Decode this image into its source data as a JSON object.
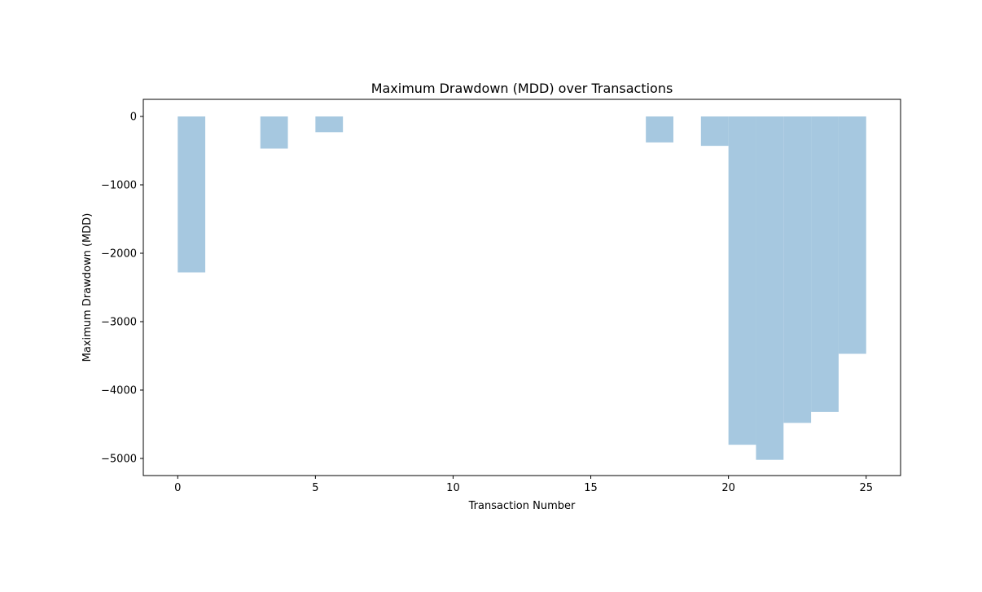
{
  "chart_data": {
    "type": "bar",
    "title": "Maximum Drawdown (MDD) over Transactions",
    "xlabel": "Transaction Number",
    "ylabel": "Maximum Drawdown (MDD)",
    "xlim": [
      -1.25,
      26.25
    ],
    "ylim": [
      -5250,
      250
    ],
    "xticks": [
      0,
      5,
      10,
      15,
      20,
      25
    ],
    "yticks": [
      0,
      -1000,
      -2000,
      -3000,
      -4000,
      -5000
    ],
    "xtick_labels": [
      "0",
      "5",
      "10",
      "15",
      "20",
      "25"
    ],
    "ytick_labels": [
      "0",
      "−1000",
      "−2000",
      "−3000",
      "−4000",
      "−5000"
    ],
    "bar_width": 1,
    "bar_align": "edge",
    "bar_color": "#a6c8e0",
    "grid": false,
    "series": [
      {
        "x": [
          0,
          3,
          5,
          17,
          19,
          20,
          21,
          22,
          23,
          24
        ],
        "values": [
          -2280,
          -470,
          -230,
          -380,
          -430,
          -4800,
          -5020,
          -4480,
          -4320,
          -3470
        ]
      }
    ]
  }
}
